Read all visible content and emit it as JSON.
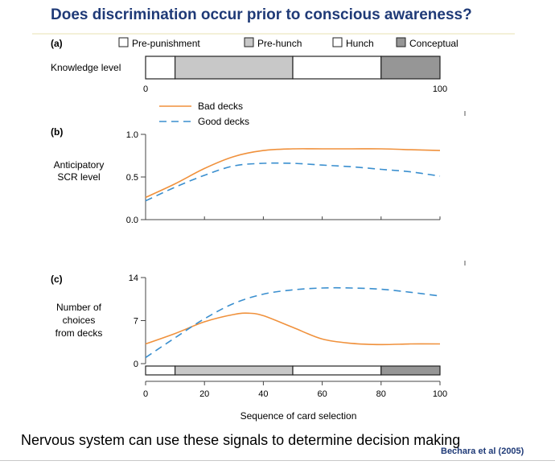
{
  "slide": {
    "title": "Does discrimination occur prior to conscious awareness?",
    "caption": "Nervous system can use these signals to determine decision making",
    "citation": "Bechara et al (2005)"
  },
  "colors": {
    "bad": "#f0913c",
    "good": "#3a8fcf",
    "axis": "#444444",
    "pre_hunch": "#c8c8c8",
    "conceptual": "#969696"
  },
  "chart_data": [
    {
      "panel": "(a)",
      "type": "bar",
      "ylabel": "Knowledge level",
      "xlim": [
        0,
        100
      ],
      "tick_labels": [
        "0",
        "100"
      ],
      "legend": [
        {
          "name": "Pre-punishment",
          "color": "#ffffff"
        },
        {
          "name": "Pre-hunch",
          "color": "#c8c8c8"
        },
        {
          "name": "Hunch",
          "color": "#ffffff"
        },
        {
          "name": "Conceptual",
          "color": "#969696"
        }
      ],
      "segments": [
        {
          "phase": "Pre-punishment",
          "start": 0,
          "end": 10
        },
        {
          "phase": "Pre-hunch",
          "start": 10,
          "end": 50
        },
        {
          "phase": "Hunch",
          "start": 50,
          "end": 80
        },
        {
          "phase": "Conceptual",
          "start": 80,
          "end": 100
        }
      ]
    },
    {
      "panel": "(b)",
      "type": "line",
      "ylabel": [
        "Anticipatory",
        "SCR level"
      ],
      "xlim": [
        0,
        100
      ],
      "ylim": [
        0,
        1.0
      ],
      "yticks": [
        "0.0",
        "0.5",
        "1.0"
      ],
      "legend": [
        "Bad decks",
        "Good decks"
      ],
      "series": [
        {
          "name": "Bad decks",
          "x": [
            0,
            10,
            20,
            30,
            40,
            50,
            60,
            70,
            80,
            90,
            100
          ],
          "y": [
            0.26,
            0.42,
            0.6,
            0.74,
            0.81,
            0.83,
            0.83,
            0.83,
            0.83,
            0.82,
            0.81
          ]
        },
        {
          "name": "Good decks",
          "x": [
            0,
            10,
            20,
            30,
            40,
            50,
            60,
            70,
            80,
            90,
            100
          ],
          "y": [
            0.22,
            0.38,
            0.52,
            0.63,
            0.66,
            0.66,
            0.64,
            0.62,
            0.59,
            0.56,
            0.51
          ]
        }
      ]
    },
    {
      "panel": "(c)",
      "type": "line",
      "ylabel": [
        "Number of",
        "choices",
        "from decks"
      ],
      "xlabel": "Sequence of card selection",
      "xlim": [
        0,
        100
      ],
      "ylim": [
        0,
        14
      ],
      "yticks": [
        "0",
        "7",
        "14"
      ],
      "xticks": [
        "0",
        "20",
        "40",
        "60",
        "80",
        "100"
      ],
      "series": [
        {
          "name": "Bad decks",
          "x": [
            0,
            10,
            20,
            30,
            35,
            40,
            50,
            60,
            70,
            80,
            90,
            100
          ],
          "y": [
            3.2,
            4.9,
            6.8,
            8.0,
            8.2,
            7.8,
            5.9,
            4.0,
            3.3,
            3.1,
            3.2,
            3.2
          ]
        },
        {
          "name": "Good decks",
          "x": [
            0,
            10,
            20,
            30,
            40,
            50,
            60,
            70,
            80,
            90,
            100
          ],
          "y": [
            1.0,
            4.2,
            7.3,
            9.8,
            11.3,
            12.0,
            12.3,
            12.3,
            12.1,
            11.6,
            11.0
          ]
        }
      ],
      "segments": [
        {
          "phase": "Pre-punishment",
          "start": 0,
          "end": 10
        },
        {
          "phase": "Pre-hunch",
          "start": 10,
          "end": 50
        },
        {
          "phase": "Hunch",
          "start": 50,
          "end": 80
        },
        {
          "phase": "Conceptual",
          "start": 80,
          "end": 100
        }
      ]
    }
  ]
}
